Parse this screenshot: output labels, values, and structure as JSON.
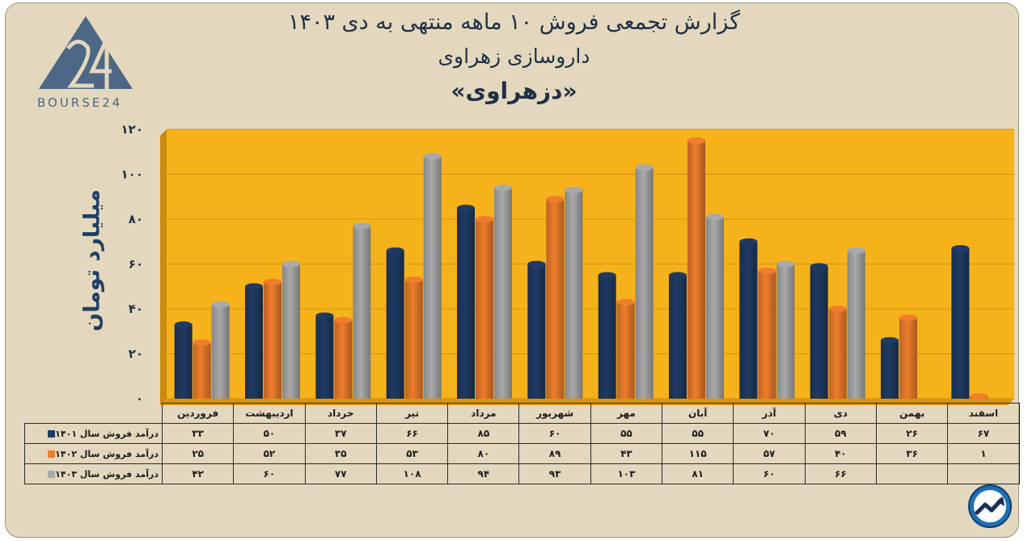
{
  "title": {
    "line1": "گزارش تجمعی فروش ۱۰ ماهه منتهی به دی ۱۴۰۳",
    "line2": "داروسازی زهراوی",
    "line3": "«دزهراوی»"
  },
  "logo": {
    "text": "BOURSE24",
    "icon": "bourse24-triangle-logo"
  },
  "brand_icon": "trend-arrow-circle-icon",
  "colors": {
    "s1401": "#1f3b63",
    "s1402": "#ee7d2c",
    "s1403": "#a9a9a9",
    "plot_bg": "#f6b21b",
    "background": "#e3d8bd"
  },
  "chart_data": {
    "type": "bar",
    "ylabel": "میلیارد تومان",
    "ylim": [
      0,
      120
    ],
    "yticks": [
      0,
      20,
      40,
      60,
      80,
      100,
      120
    ],
    "ytick_labels": [
      "۰",
      "۲۰",
      "۴۰",
      "۶۰",
      "۸۰",
      "۱۰۰",
      "۱۲۰"
    ],
    "grid": true,
    "categories": [
      "فروردین",
      "اردیبهشت",
      "خرداد",
      "تیر",
      "مرداد",
      "شهریور",
      "مهر",
      "آبان",
      "آذر",
      "دی",
      "بهمن",
      "اسفند"
    ],
    "series": [
      {
        "name": "درآمد فروش سال ۱۴۰۱",
        "values": [
          33,
          50,
          37,
          66,
          85,
          60,
          55,
          55,
          70,
          59,
          26,
          67
        ],
        "labels": [
          "۳۳",
          "۵۰",
          "۳۷",
          "۶۶",
          "۸۵",
          "۶۰",
          "۵۵",
          "۵۵",
          "۷۰",
          "۵۹",
          "۲۶",
          "۶۷"
        ]
      },
      {
        "name": "درآمد فروش سال ۱۴۰۲",
        "values": [
          25,
          52,
          35,
          53,
          80,
          89,
          43,
          115,
          57,
          40,
          36,
          1
        ],
        "labels": [
          "۲۵",
          "۵۲",
          "۳۵",
          "۵۳",
          "۸۰",
          "۸۹",
          "۴۳",
          "۱۱۵",
          "۵۷",
          "۴۰",
          "۳۶",
          "۱"
        ]
      },
      {
        "name": "درآمد فروش سال ۱۴۰۳",
        "values": [
          42,
          60,
          77,
          108,
          94,
          93,
          103,
          81,
          60,
          66,
          null,
          null
        ],
        "labels": [
          "۴۲",
          "۶۰",
          "۷۷",
          "۱۰۸",
          "۹۴",
          "۹۳",
          "۱۰۳",
          "۸۱",
          "۶۰",
          "۶۶",
          "",
          ""
        ]
      }
    ]
  }
}
